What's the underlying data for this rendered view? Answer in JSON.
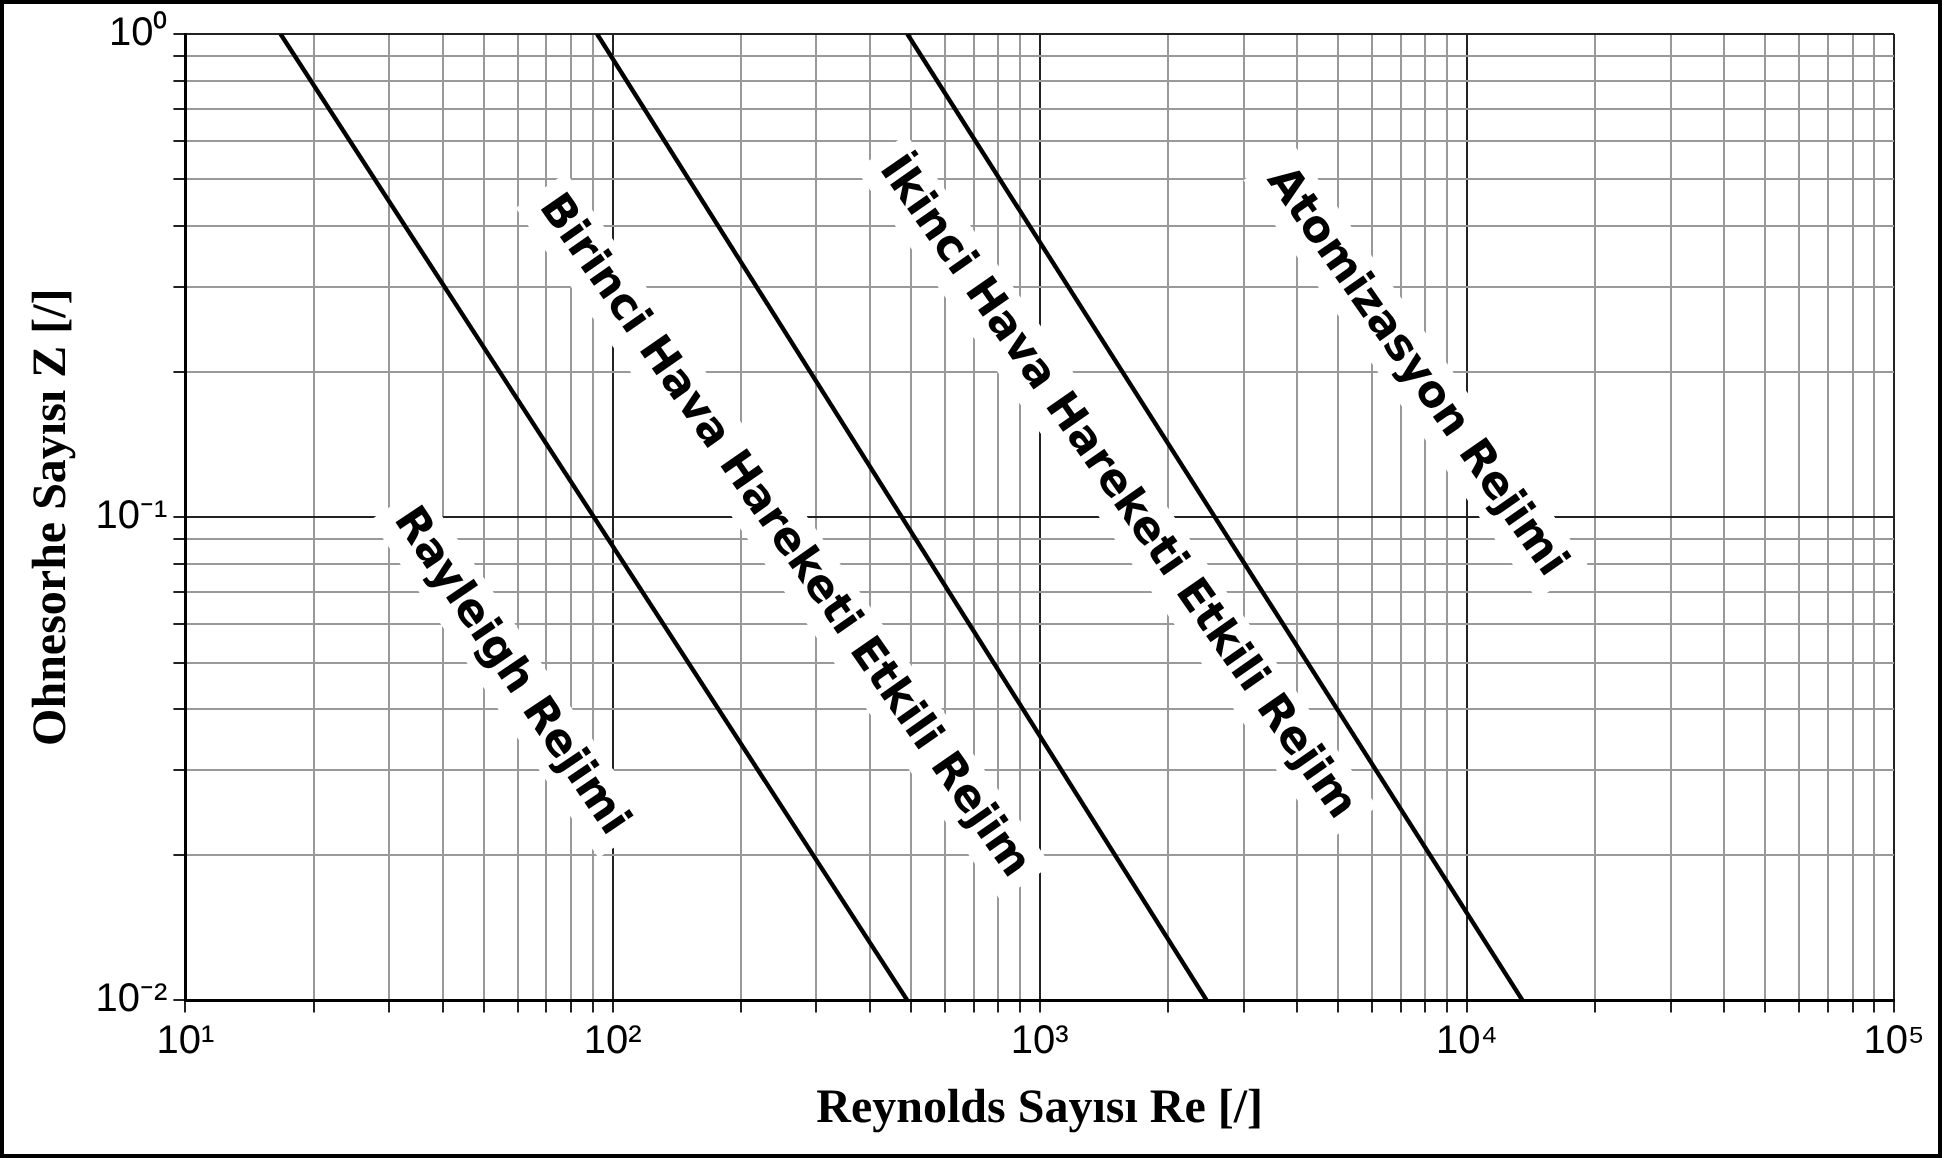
{
  "chart_data": {
    "type": "line",
    "xlabel": "Reynolds Sayısı Re [/]",
    "ylabel": "Ohnesorhe Sayısı Z [/]",
    "log": "xy",
    "grid": true,
    "marker": "none",
    "line_style": "solid",
    "legend": false,
    "xlim": [
      10,
      100000
    ],
    "ylim": [
      0.01,
      1
    ],
    "xticks": [
      {
        "value": 10,
        "label": "10¹"
      },
      {
        "value": 20,
        "label": null
      },
      {
        "value": 30,
        "label": null
      },
      {
        "value": 40,
        "label": null
      },
      {
        "value": 50,
        "label": null
      },
      {
        "value": 60,
        "label": null
      },
      {
        "value": 70,
        "label": null
      },
      {
        "value": 80,
        "label": null
      },
      {
        "value": 90,
        "label": null
      },
      {
        "value": 100,
        "label": "10²"
      },
      {
        "value": 200,
        "label": null
      },
      {
        "value": 300,
        "label": null
      },
      {
        "value": 400,
        "label": null
      },
      {
        "value": 500,
        "label": null
      },
      {
        "value": 600,
        "label": null
      },
      {
        "value": 700,
        "label": null
      },
      {
        "value": 800,
        "label": null
      },
      {
        "value": 900,
        "label": null
      },
      {
        "value": 1000,
        "label": "10³"
      },
      {
        "value": 2000,
        "label": null
      },
      {
        "value": 3000,
        "label": null
      },
      {
        "value": 4000,
        "label": null
      },
      {
        "value": 5000,
        "label": null
      },
      {
        "value": 6000,
        "label": null
      },
      {
        "value": 7000,
        "label": null
      },
      {
        "value": 8000,
        "label": null
      },
      {
        "value": 9000,
        "label": null
      },
      {
        "value": 10000,
        "label": "10⁴"
      },
      {
        "value": 20000,
        "label": null
      },
      {
        "value": 30000,
        "label": null
      },
      {
        "value": 40000,
        "label": null
      },
      {
        "value": 50000,
        "label": null
      },
      {
        "value": 60000,
        "label": null
      },
      {
        "value": 70000,
        "label": null
      },
      {
        "value": 80000,
        "label": null
      },
      {
        "value": 90000,
        "label": null
      },
      {
        "value": 100000,
        "label": "10⁵"
      }
    ],
    "yticks": [
      {
        "value": 0.01,
        "label": "10⁻²"
      },
      {
        "value": 0.02,
        "label": null
      },
      {
        "value": 0.03,
        "label": null
      },
      {
        "value": 0.04,
        "label": null
      },
      {
        "value": 0.05,
        "label": null
      },
      {
        "value": 0.06,
        "label": null
      },
      {
        "value": 0.07,
        "label": null
      },
      {
        "value": 0.08,
        "label": null
      },
      {
        "value": 0.09,
        "label": null
      },
      {
        "value": 0.1,
        "label": "10⁻¹"
      },
      {
        "value": 0.2,
        "label": null
      },
      {
        "value": 0.3,
        "label": null
      },
      {
        "value": 0.4,
        "label": null
      },
      {
        "value": 0.5,
        "label": null
      },
      {
        "value": 0.6,
        "label": null
      },
      {
        "value": 0.7,
        "label": null
      },
      {
        "value": 0.8,
        "label": null
      },
      {
        "value": 0.9,
        "label": null
      },
      {
        "value": 1,
        "label": "10⁰"
      }
    ],
    "series": [
      {
        "color": "#000000",
        "x": [
          16.7,
          490
        ],
        "values": [
          1,
          0.01
        ]
      },
      {
        "color": "#000000",
        "x": [
          92,
          2460
        ],
        "values": [
          1,
          0.01
        ]
      },
      {
        "color": "#000000",
        "x": [
          490,
          13500
        ],
        "values": [
          1,
          0.01
        ]
      }
    ],
    "annotations": [
      "Rayleigh Rejimi",
      "Birinci Hava Hareketi Etkili Rejim",
      "İkinci Hava Hareketi Etkili Rejim",
      "Atomizasyon Rejimi"
    ]
  }
}
